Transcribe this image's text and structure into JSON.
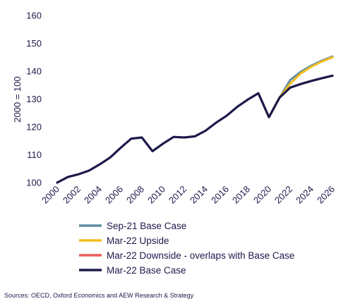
{
  "chart_data": {
    "type": "line",
    "ylabel": "2000 = 100",
    "xlabel": "",
    "title": "",
    "ylim": [
      100,
      160
    ],
    "yticks": [
      100,
      110,
      120,
      130,
      140,
      150,
      160
    ],
    "xlim": [
      2000,
      2026
    ],
    "xticks": [
      "2000",
      "2002",
      "2004",
      "2006",
      "2008",
      "2010",
      "2012",
      "2014",
      "2016",
      "2018",
      "2020",
      "2022",
      "2024",
      "2026"
    ],
    "grid": false,
    "legend_position": "bottom",
    "series": [
      {
        "name": "Sep-21 Base Case",
        "color": "#5f8fa0",
        "x": [
          2020,
          2021,
          2022,
          2023,
          2024,
          2025,
          2026
        ],
        "y": [
          123.5,
          130.5,
          136.8,
          139.8,
          142.0,
          143.8,
          145.3
        ]
      },
      {
        "name": "Mar-22 Upside",
        "color": "#f5bd1f",
        "x": [
          2020,
          2021,
          2022,
          2023,
          2024,
          2025,
          2026
        ],
        "y": [
          123.5,
          130.5,
          135.5,
          139.2,
          141.6,
          143.5,
          145.0
        ]
      },
      {
        "name": "Mar-22 Downside - overlaps with Base Case",
        "color": "#ef5a5a",
        "x": [
          2020,
          2021,
          2022,
          2023,
          2024,
          2025,
          2026
        ],
        "y": [
          123.5,
          130.5,
          134.1,
          135.4,
          136.5,
          137.5,
          138.4
        ]
      },
      {
        "name": "Mar-22 Base Case",
        "color": "#1c1a4a",
        "x": [
          2000,
          2001,
          2002,
          2003,
          2004,
          2005,
          2006,
          2007,
          2008,
          2009,
          2010,
          2011,
          2012,
          2013,
          2014,
          2015,
          2016,
          2017,
          2018,
          2019,
          2020,
          2021,
          2022,
          2023,
          2024,
          2025,
          2026
        ],
        "y": [
          100.0,
          102.0,
          103.0,
          104.3,
          106.5,
          109.0,
          112.5,
          115.8,
          116.2,
          111.3,
          114.0,
          116.4,
          116.2,
          116.6,
          118.6,
          121.5,
          124.0,
          127.2,
          129.8,
          132.1,
          123.5,
          130.5,
          134.1,
          135.4,
          136.5,
          137.5,
          138.4
        ]
      }
    ]
  },
  "source_note": "Sources: OECD, Oxford Economics and AEW Research & Strategy"
}
